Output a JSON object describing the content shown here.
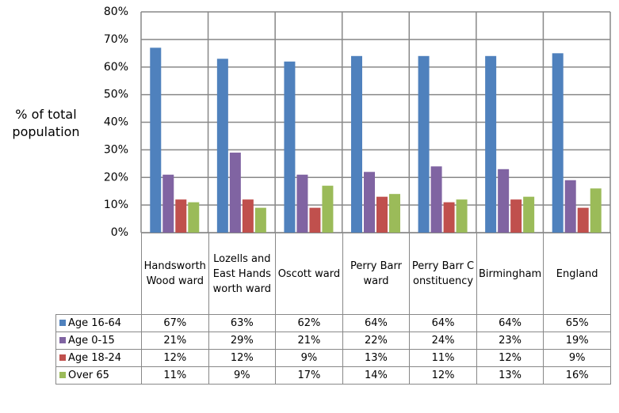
{
  "chart_data": {
    "type": "bar",
    "y_label": "% of total population",
    "categories": [
      "Handsworth Wood ward",
      "Lozells and East Handsworth ward",
      "Oscott ward",
      "Perry Barr ward",
      "Perry Barr Constituency",
      "Birmingham",
      "England"
    ],
    "series": [
      {
        "name": "Age 16-64",
        "color": "#4f81bd",
        "values": [
          67,
          63,
          62,
          64,
          64,
          64,
          65
        ],
        "value_labels": [
          "67%",
          "63%",
          "62%",
          "64%",
          "64%",
          "64%",
          "65%"
        ]
      },
      {
        "name": "Age 0-15",
        "color": "#8064a2",
        "values": [
          21,
          29,
          21,
          22,
          24,
          23,
          19
        ],
        "value_labels": [
          "21%",
          "29%",
          "21%",
          "22%",
          "24%",
          "23%",
          "19%"
        ]
      },
      {
        "name": "Age 18-24",
        "color": "#c0504d",
        "values": [
          12,
          12,
          9,
          13,
          11,
          12,
          9
        ],
        "value_labels": [
          "12%",
          "12%",
          "9%",
          "13%",
          "11%",
          "12%",
          "9%"
        ]
      },
      {
        "name": "Over 65",
        "color": "#9bbb59",
        "values": [
          11,
          9,
          17,
          14,
          12,
          13,
          16
        ],
        "value_labels": [
          "11%",
          "9%",
          "17%",
          "14%",
          "12%",
          "13%",
          "16%"
        ]
      }
    ],
    "ylim": [
      0,
      80
    ],
    "yticks": [
      {
        "value": 0,
        "label": "0%"
      },
      {
        "value": 10,
        "label": "10%"
      },
      {
        "value": 20,
        "label": "20%"
      },
      {
        "value": 30,
        "label": "30%"
      },
      {
        "value": 40,
        "label": "40%"
      },
      {
        "value": 50,
        "label": "50%"
      },
      {
        "value": 60,
        "label": "60%"
      },
      {
        "value": 70,
        "label": "70%"
      },
      {
        "value": 80,
        "label": "80%"
      }
    ],
    "grid": true
  }
}
